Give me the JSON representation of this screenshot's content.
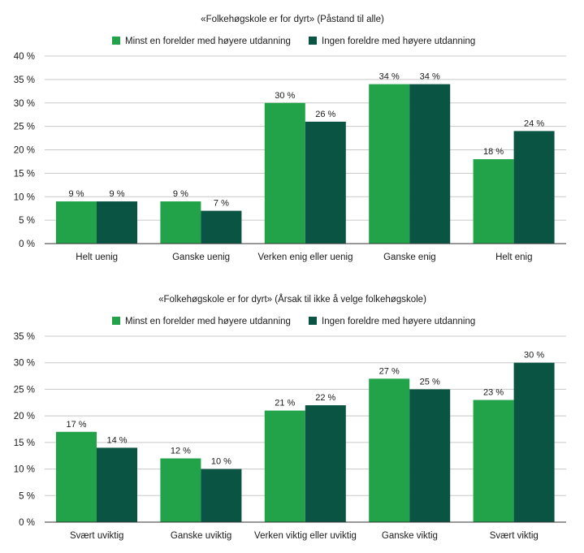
{
  "chart_data": [
    {
      "type": "bar",
      "title": "«Folkehøgskole er for dyrt» (Påstand til alle)",
      "categories": [
        "Helt uenig",
        "Ganske uenig",
        "Verken enig eller uenig",
        "Ganske enig",
        "Helt enig"
      ],
      "series": [
        {
          "name": "Minst en forelder med høyere utdanning",
          "values": [
            9,
            9,
            30,
            34,
            18
          ],
          "color": "#22a34a"
        },
        {
          "name": "Ingen foreldre med høyere utdanning",
          "values": [
            9,
            7,
            26,
            34,
            24
          ],
          "color": "#0a5443"
        }
      ],
      "ylim": [
        0,
        40
      ],
      "ystep": 5,
      "unit": " %",
      "xlabel": "",
      "ylabel": "",
      "legend": "top-center",
      "grid": true
    },
    {
      "type": "bar",
      "title": "«Folkehøgskole er for dyrt» (Årsak til ikke å velge folkehøgskole)",
      "categories": [
        "Svært uviktig",
        "Ganske uviktig",
        "Verken viktig eller uviktig",
        "Ganske viktig",
        "Svært viktig"
      ],
      "series": [
        {
          "name": "Minst en forelder med høyere utdanning",
          "values": [
            17,
            12,
            21,
            27,
            23
          ],
          "color": "#22a34a"
        },
        {
          "name": "Ingen foreldre med høyere utdanning",
          "values": [
            14,
            10,
            22,
            25,
            30
          ],
          "color": "#0a5443"
        }
      ],
      "ylim": [
        0,
        35
      ],
      "ystep": 5,
      "unit": " %",
      "xlabel": "",
      "ylabel": "",
      "legend": "top-center",
      "grid": true
    }
  ]
}
